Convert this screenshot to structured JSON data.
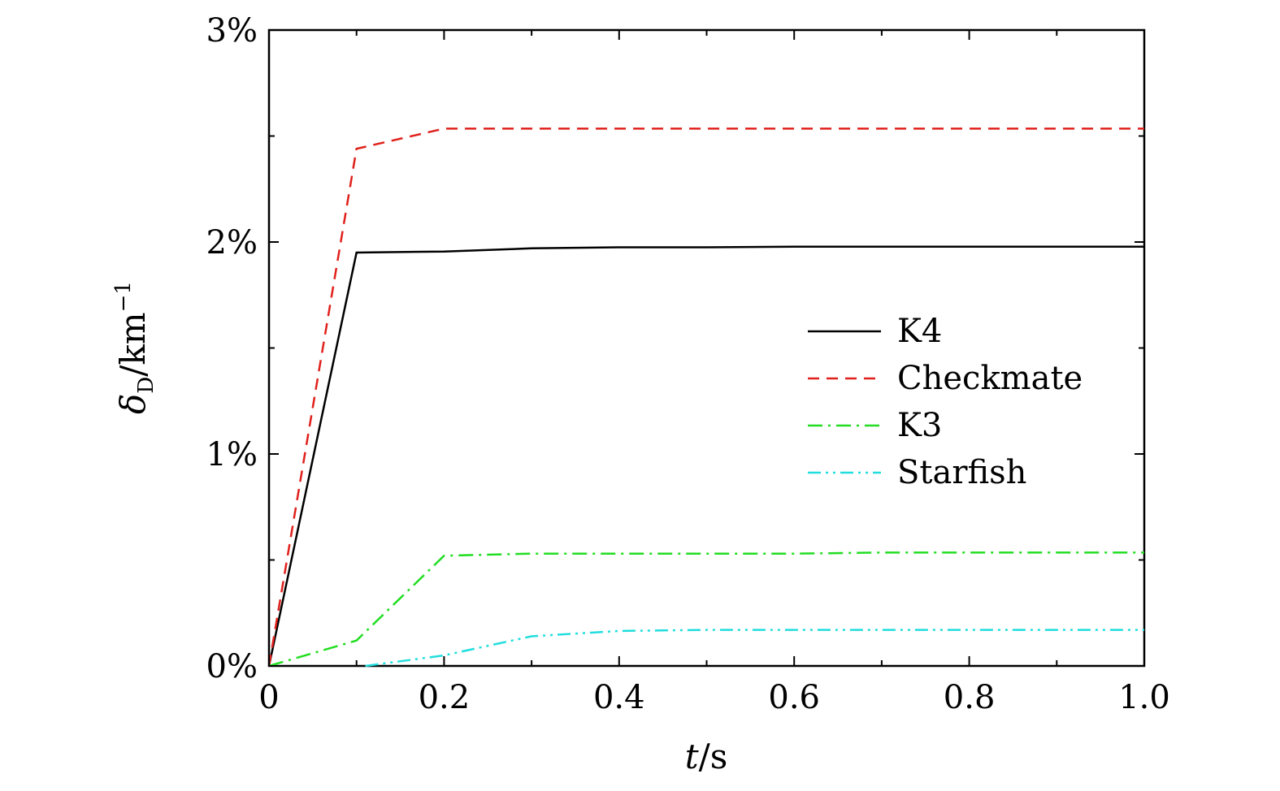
{
  "chart_data": {
    "type": "line",
    "xlabel": {
      "italic": "t",
      "rest": "/s"
    },
    "ylabel": {
      "main": "δ",
      "sub": "D",
      "rest": "/km",
      "sup": "−1"
    },
    "xlim": [
      0,
      1.0
    ],
    "ylim": [
      0,
      3
    ],
    "x_ticks": [
      {
        "value": 0,
        "label": "0"
      },
      {
        "value": 0.2,
        "label": "0.2"
      },
      {
        "value": 0.4,
        "label": "0.4"
      },
      {
        "value": 0.6,
        "label": "0.6"
      },
      {
        "value": 0.8,
        "label": "0.8"
      },
      {
        "value": 1.0,
        "label": "1.0"
      }
    ],
    "x_minor_ticks": [
      0.1,
      0.3,
      0.5,
      0.7,
      0.9
    ],
    "y_ticks": [
      {
        "value": 0,
        "label": "0%"
      },
      {
        "value": 1,
        "label": "1%"
      },
      {
        "value": 2,
        "label": "2%"
      },
      {
        "value": 3,
        "label": "3%"
      }
    ],
    "y_minor_ticks": [
      0.5,
      1.5,
      2.5
    ],
    "grid": false,
    "legend_position": "center-right",
    "series": [
      {
        "name": "K4",
        "color": "#000000",
        "dash": "solid",
        "x": [
          0,
          0.1,
          0.2,
          0.3,
          0.4,
          0.5,
          0.6,
          0.7,
          0.8,
          0.9,
          1.0
        ],
        "y": [
          0,
          1.95,
          1.955,
          1.97,
          1.975,
          1.975,
          1.978,
          1.978,
          1.978,
          1.978,
          1.978
        ]
      },
      {
        "name": "Checkmate",
        "color": "#e0201b",
        "dash": "dashed",
        "x": [
          0,
          0.1,
          0.2,
          0.3,
          0.4,
          0.5,
          0.6,
          0.7,
          0.8,
          0.9,
          1.0
        ],
        "y": [
          0,
          2.44,
          2.535,
          2.535,
          2.535,
          2.535,
          2.535,
          2.535,
          2.535,
          2.535,
          2.535
        ]
      },
      {
        "name": "K3",
        "color": "#22dd22",
        "dash": "dashdot",
        "x": [
          0,
          0.1,
          0.2,
          0.3,
          0.4,
          0.5,
          0.6,
          0.7,
          0.8,
          0.9,
          1.0
        ],
        "y": [
          0,
          0.12,
          0.52,
          0.53,
          0.53,
          0.53,
          0.53,
          0.535,
          0.535,
          0.535,
          0.535
        ]
      },
      {
        "name": "Starfish",
        "color": "#22dddd",
        "dash": "dashdotdot",
        "x": [
          0.11,
          0.2,
          0.3,
          0.4,
          0.5,
          0.6,
          0.7,
          0.8,
          0.9,
          1.0
        ],
        "y": [
          0,
          0.05,
          0.14,
          0.165,
          0.17,
          0.17,
          0.17,
          0.17,
          0.17,
          0.17
        ]
      }
    ]
  }
}
